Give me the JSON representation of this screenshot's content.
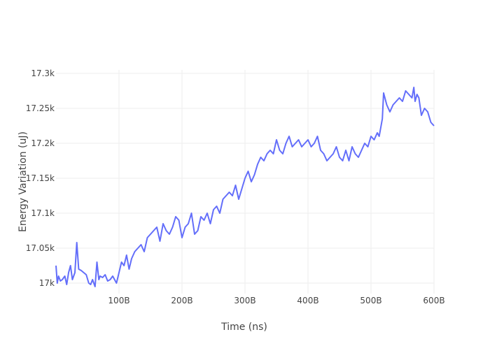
{
  "chart_data": {
    "type": "line",
    "title": "",
    "xlabel": "Time (ns)",
    "ylabel": "Energy Variation (uJ)",
    "xlim": [
      0,
      600
    ],
    "ylim": [
      16985,
      17305
    ],
    "grid": true,
    "legend": "none",
    "x_ticks": [
      {
        "value": 100,
        "label": "100B"
      },
      {
        "value": 200,
        "label": "200B"
      },
      {
        "value": 300,
        "label": "300B"
      },
      {
        "value": 400,
        "label": "400B"
      },
      {
        "value": 500,
        "label": "500B"
      },
      {
        "value": 600,
        "label": "600B"
      }
    ],
    "y_ticks": [
      {
        "value": 17000,
        "label": "17k"
      },
      {
        "value": 17050,
        "label": "17.05k"
      },
      {
        "value": 17100,
        "label": "17.1k"
      },
      {
        "value": 17150,
        "label": "17.15k"
      },
      {
        "value": 17200,
        "label": "17.2k"
      },
      {
        "value": 17250,
        "label": "17.25k"
      },
      {
        "value": 17300,
        "label": "17.3k"
      }
    ],
    "series": [
      {
        "color": "#636efa",
        "x": [
          0,
          2,
          4,
          7,
          10,
          14,
          17,
          20,
          23,
          26,
          30,
          33,
          36,
          40,
          44,
          48,
          52,
          55,
          58,
          62,
          65,
          68,
          70,
          74,
          78,
          82,
          86,
          90,
          93,
          96,
          100,
          104,
          108,
          112,
          116,
          120,
          125,
          130,
          135,
          140,
          145,
          150,
          155,
          160,
          165,
          170,
          175,
          180,
          185,
          190,
          195,
          200,
          205,
          210,
          215,
          220,
          225,
          230,
          235,
          240,
          245,
          250,
          255,
          260,
          265,
          270,
          275,
          280,
          285,
          290,
          295,
          300,
          305,
          310,
          315,
          320,
          325,
          330,
          335,
          340,
          345,
          350,
          355,
          360,
          365,
          370,
          375,
          380,
          385,
          390,
          395,
          400,
          405,
          410,
          415,
          420,
          425,
          430,
          435,
          440,
          445,
          450,
          455,
          460,
          465,
          470,
          475,
          480,
          485,
          490,
          495,
          500,
          505,
          510,
          513,
          516,
          518,
          520,
          525,
          530,
          535,
          540,
          545,
          550,
          555,
          560,
          565,
          568,
          570,
          573,
          576,
          580,
          585,
          590,
          595,
          600
        ],
        "y": [
          17025,
          17000,
          17010,
          17003,
          17005,
          17010,
          16998,
          17015,
          17025,
          17005,
          17015,
          17058,
          17020,
          17018,
          17015,
          17012,
          17000,
          16998,
          17005,
          16995,
          17030,
          17005,
          17010,
          17008,
          17012,
          17003,
          17005,
          17010,
          17005,
          17000,
          17015,
          17030,
          17025,
          17040,
          17020,
          17035,
          17045,
          17050,
          17055,
          17045,
          17065,
          17070,
          17075,
          17080,
          17060,
          17085,
          17075,
          17070,
          17080,
          17095,
          17090,
          17065,
          17080,
          17085,
          17100,
          17070,
          17075,
          17095,
          17090,
          17100,
          17085,
          17105,
          17110,
          17100,
          17120,
          17125,
          17130,
          17125,
          17140,
          17120,
          17135,
          17150,
          17160,
          17145,
          17155,
          17170,
          17180,
          17175,
          17185,
          17190,
          17185,
          17205,
          17190,
          17185,
          17200,
          17210,
          17195,
          17200,
          17205,
          17195,
          17200,
          17205,
          17195,
          17200,
          17210,
          17190,
          17185,
          17175,
          17180,
          17185,
          17195,
          17180,
          17175,
          17190,
          17175,
          17195,
          17185,
          17180,
          17190,
          17200,
          17195,
          17210,
          17205,
          17215,
          17210,
          17225,
          17235,
          17272,
          17255,
          17245,
          17255,
          17260,
          17265,
          17260,
          17275,
          17270,
          17265,
          17280,
          17260,
          17270,
          17265,
          17240,
          17250,
          17245,
          17230,
          17225
        ]
      }
    ]
  }
}
